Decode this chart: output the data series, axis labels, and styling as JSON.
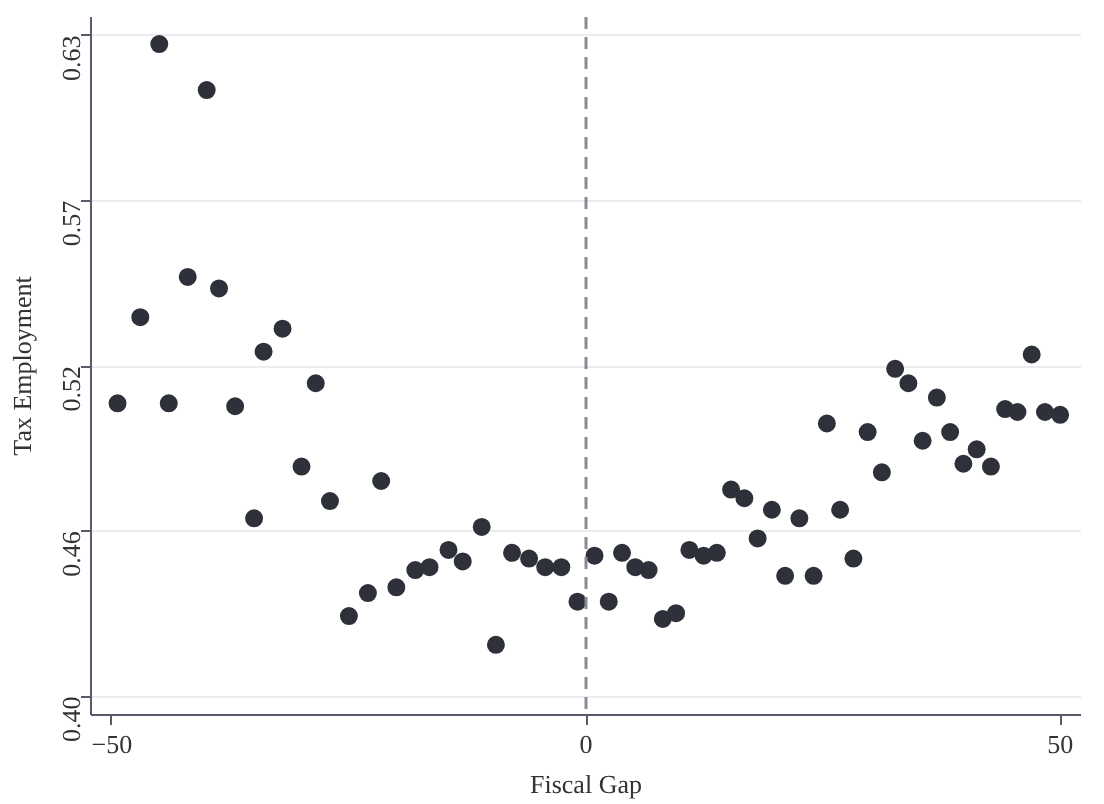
{
  "chart_data": {
    "type": "scatter",
    "xlabel": "Fiscal Gap",
    "ylabel": "Tax Employment",
    "x": [
      -49.4,
      -47,
      -45,
      -44,
      -42,
      -40,
      -38.7,
      -37,
      -35,
      -34,
      -32,
      -30,
      -28.5,
      -27,
      -25,
      -23,
      -21.6,
      -20,
      -18,
      -16.5,
      -14.5,
      -13,
      -11,
      -9.5,
      -7.8,
      -6,
      -4.3,
      -2.6,
      -0.9,
      0.9,
      2.4,
      3.8,
      5.2,
      6.6,
      8.1,
      9.5,
      10.9,
      12.4,
      13.8,
      15.3,
      16.7,
      18.1,
      19.6,
      21,
      22.5,
      24,
      25.4,
      26.8,
      28.2,
      29.7,
      31.2,
      32.6,
      34,
      35.5,
      37,
      38.4,
      39.8,
      41.2,
      42.7,
      44.2,
      45.5,
      47,
      48.4,
      50
    ],
    "values": [
      0.502,
      0.532,
      0.627,
      0.502,
      0.546,
      0.611,
      0.542,
      0.501,
      0.462,
      0.52,
      0.528,
      0.48,
      0.509,
      0.468,
      0.428,
      0.436,
      0.475,
      0.438,
      0.444,
      0.445,
      0.451,
      0.447,
      0.459,
      0.418,
      0.45,
      0.448,
      0.445,
      0.445,
      0.433,
      0.449,
      0.433,
      0.45,
      0.445,
      0.444,
      0.427,
      0.429,
      0.451,
      0.449,
      0.45,
      0.472,
      0.469,
      0.455,
      0.465,
      0.442,
      0.462,
      0.442,
      0.495,
      0.465,
      0.448,
      0.492,
      0.478,
      0.514,
      0.509,
      0.489,
      0.504,
      0.492,
      0.481,
      0.486,
      0.48,
      0.5,
      0.499,
      0.519,
      0.499,
      0.498
    ],
    "color": "#2e3139",
    "marker": "circle",
    "xlim": [
      -52.2,
      52.2
    ],
    "ylim": [
      0.3936,
      0.6364
    ],
    "xticks": [
      -50,
      0,
      50
    ],
    "yticks": [
      {
        "value": 0.4,
        "label": "0.40"
      },
      {
        "value": 0.4575,
        "label": "0.46"
      },
      {
        "value": 0.515,
        "label": "0.52"
      },
      {
        "value": 0.5725,
        "label": "0.57"
      },
      {
        "value": 0.63,
        "label": "0.63"
      }
    ],
    "grid": "y",
    "ref_lines": [
      {
        "axis": "x",
        "value": 0,
        "color": "#8a8a94",
        "line_style": "dashed"
      }
    ]
  }
}
